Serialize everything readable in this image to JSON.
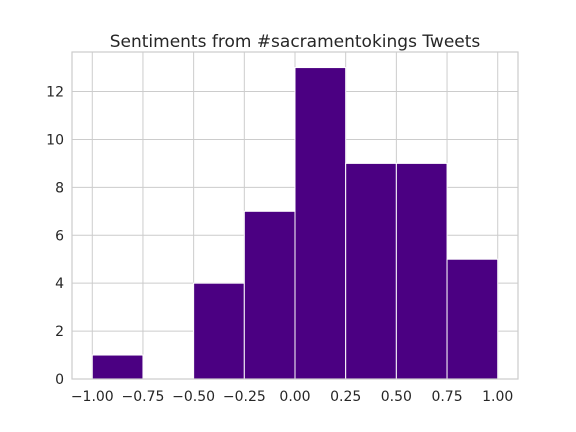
{
  "chart_data": {
    "type": "bar",
    "title": "Sentiments from #sacramentokings Tweets",
    "xlabel": "",
    "ylabel": "",
    "bin_edges": [
      -1.0,
      -0.75,
      -0.5,
      -0.25,
      0.0,
      0.25,
      0.5,
      0.75,
      1.0
    ],
    "values": [
      1,
      0,
      4,
      7,
      13,
      9,
      9,
      5
    ],
    "xlim": [
      -1.1,
      1.1
    ],
    "ylim": [
      0,
      13.65
    ],
    "x_ticks": [
      -1.0,
      -0.75,
      -0.5,
      -0.25,
      0.0,
      0.25,
      0.5,
      0.75,
      1.0
    ],
    "x_tick_labels": [
      "−1.00",
      "−0.75",
      "−0.50",
      "−0.25",
      "0.00",
      "0.25",
      "0.50",
      "0.75",
      "1.00"
    ],
    "y_ticks": [
      0,
      2,
      4,
      6,
      8,
      10,
      12
    ],
    "y_tick_labels": [
      "0",
      "2",
      "4",
      "6",
      "8",
      "10",
      "12"
    ],
    "grid": true,
    "bar_color": "#4b0082",
    "bar_edge_color": "#ffffff"
  }
}
